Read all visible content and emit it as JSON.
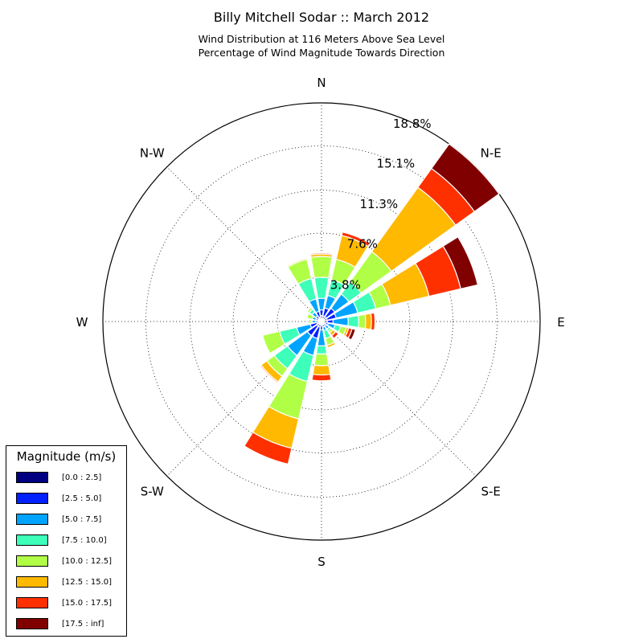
{
  "title": "Billy Mitchell Sodar :: March 2012",
  "subtitle_line1": "Wind Distribution at 116 Meters Above Sea Level",
  "subtitle_line2": "Percentage of Wind Magnitude Towards Direction",
  "legend": {
    "title": "Magnitude (m/s)",
    "items": [
      {
        "label": "[0.0 : 2.5]",
        "color": "#000080"
      },
      {
        "label": "[2.5 : 5.0]",
        "color": "#0020ff"
      },
      {
        "label": "[5.0 : 7.5]",
        "color": "#00a4ff"
      },
      {
        "label": "[7.5 : 10.0]",
        "color": "#3dffba"
      },
      {
        "label": "[10.0 : 12.5]",
        "color": "#b0ff46"
      },
      {
        "label": "[12.5 : 15.0]",
        "color": "#ffb900"
      },
      {
        "label": "[15.0 : 17.5]",
        "color": "#ff3000"
      },
      {
        "label": "[17.5 : inf]",
        "color": "#800000"
      }
    ]
  },
  "chart_data": {
    "type": "windrose",
    "title": "Billy Mitchell Sodar :: March 2012",
    "radial_ticks": [
      "3.8%",
      "7.6%",
      "11.3%",
      "15.1%",
      "18.8%"
    ],
    "radial_tick_values": [
      3.8,
      7.6,
      11.3,
      15.1,
      18.8
    ],
    "rmax": 18.8,
    "direction_labels": [
      "N",
      "N-E",
      "E",
      "S-E",
      "S",
      "S-W",
      "W",
      "N-W"
    ],
    "directions_deg": [
      0,
      22.5,
      45,
      67.5,
      90,
      112.5,
      135,
      157.5,
      180,
      202.5,
      225,
      247.5,
      270,
      292.5,
      315,
      337.5
    ],
    "bins": [
      "[0.0 : 2.5]",
      "[2.5 : 5.0]",
      "[5.0 : 7.5]",
      "[7.5 : 10.0]",
      "[10.0 : 12.5]",
      "[12.5 : 15.0]",
      "[15.0 : 17.5]",
      "[17.5 : inf]"
    ],
    "cumulative_percent": [
      [
        0.5,
        1.0,
        2.0,
        3.8,
        5.6,
        5.8,
        5.9,
        5.9
      ],
      [
        0.5,
        1.2,
        2.3,
        3.7,
        5.5,
        7.6,
        7.9,
        7.9
      ],
      [
        0.5,
        1.4,
        2.9,
        4.2,
        7.4,
        14.2,
        16.2,
        18.8
      ],
      [
        0.5,
        1.3,
        3.2,
        4.8,
        6.1,
        9.5,
        12.3,
        13.8
      ],
      [
        0.5,
        1.0,
        2.3,
        3.2,
        3.8,
        4.3,
        4.6,
        4.6
      ],
      [
        0.4,
        0.6,
        1.2,
        1.7,
        2.2,
        2.4,
        2.7,
        3.0
      ],
      [
        0.3,
        0.5,
        0.8,
        1.0,
        1.2,
        1.5,
        1.8,
        1.8
      ],
      [
        0.3,
        0.5,
        0.8,
        1.5,
        2.1,
        2.3,
        2.3,
        2.3
      ],
      [
        0.3,
        0.7,
        2.1,
        2.8,
        3.8,
        4.6,
        5.1,
        5.1
      ],
      [
        0.5,
        1.5,
        3.0,
        5.3,
        8.6,
        11.2,
        12.6,
        12.6
      ],
      [
        0.5,
        1.5,
        3.6,
        5.0,
        5.8,
        6.4,
        6.5,
        6.5
      ],
      [
        0.4,
        1.0,
        2.2,
        3.7,
        5.2,
        5.2,
        5.2,
        5.2
      ],
      [
        0.3,
        0.5,
        0.8,
        0.9,
        1.1,
        1.1,
        1.1,
        1.1
      ],
      [
        0.3,
        0.5,
        0.8,
        0.8,
        1.3,
        1.3,
        1.3,
        1.3
      ],
      [
        0.3,
        0.6,
        1.0,
        1.3,
        1.5,
        1.5,
        1.5,
        1.5
      ],
      [
        0.4,
        0.9,
        2.0,
        3.8,
        5.5,
        5.6,
        5.6,
        5.6
      ]
    ]
  }
}
